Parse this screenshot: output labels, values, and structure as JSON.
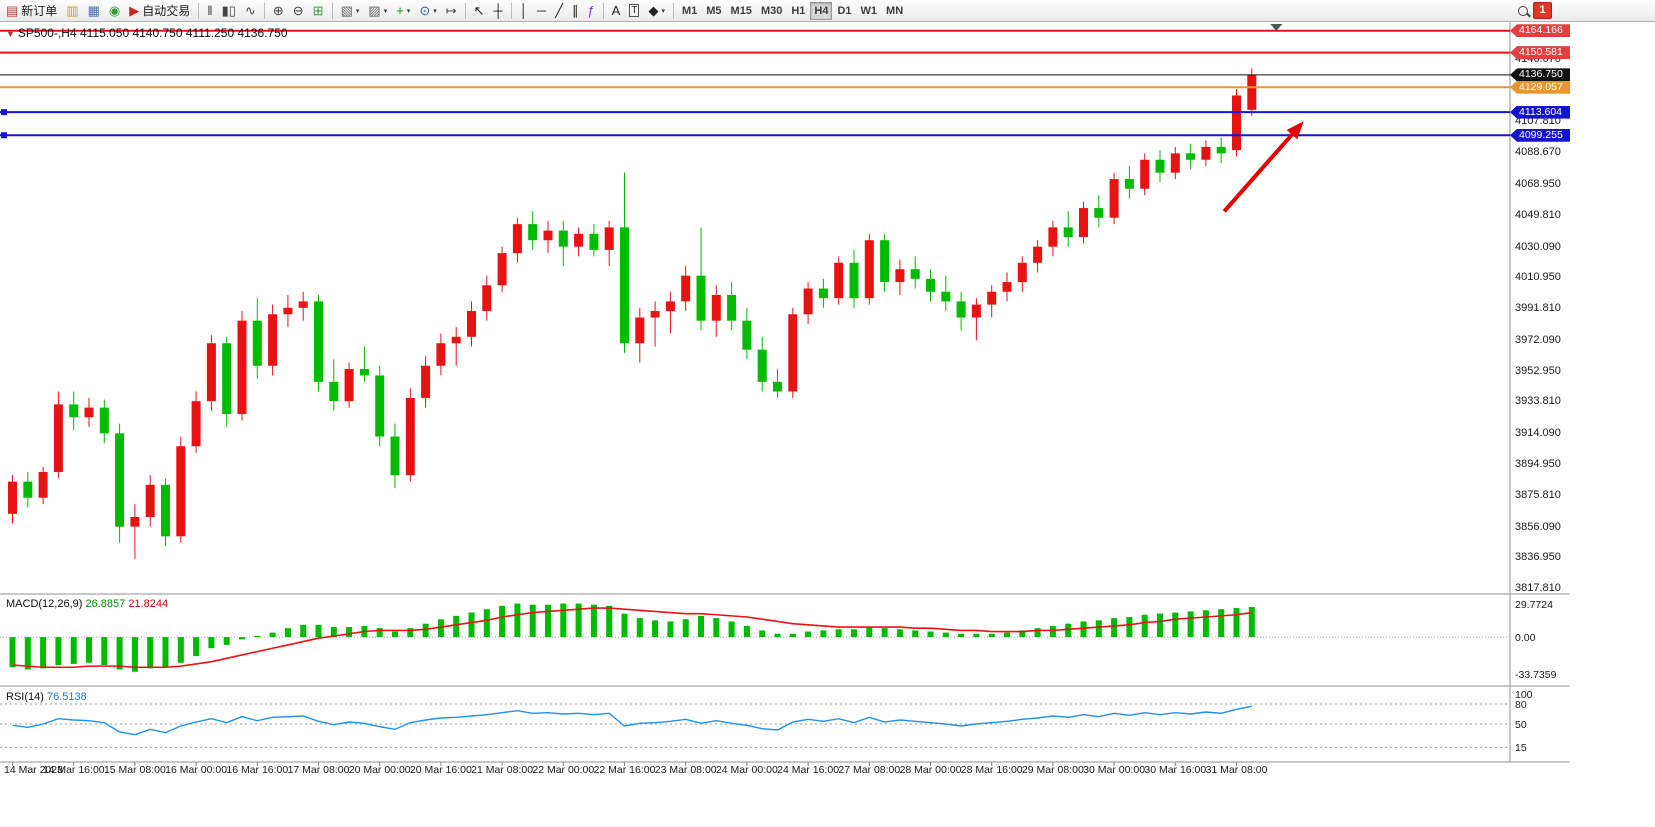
{
  "toolbar": {
    "items": [
      {
        "kind": "button",
        "name": "new-order-button",
        "glyph": "▤",
        "glyph_color": "#b04040",
        "label": "新订单"
      },
      {
        "kind": "button",
        "name": "market-watch-icon",
        "glyph": "▥",
        "glyph_color": "#c8a020"
      },
      {
        "kind": "button",
        "name": "data-window-icon",
        "glyph": "▦",
        "glyph_color": "#4a6fa5"
      },
      {
        "kind": "button",
        "name": "navigator-icon",
        "glyph": "◉",
        "glyph_color": "#3a9a3a"
      },
      {
        "kind": "button",
        "name": "autotrading-button",
        "glyph": "▶",
        "glyph_color": "#cc2222",
        "label": "自动交易"
      },
      {
        "kind": "sep"
      },
      {
        "kind": "button",
        "name": "bar-chart-icon",
        "glyph": "‖",
        "glyph_color": "#444444"
      },
      {
        "kind": "button",
        "name": "candlestick-chart-icon",
        "glyph": "▮▯",
        "glyph_color": "#444444"
      },
      {
        "kind": "button",
        "name": "line-chart-icon",
        "glyph": "∿",
        "glyph_color": "#444444"
      },
      {
        "kind": "sep"
      },
      {
        "kind": "button",
        "name": "zoom-in-icon",
        "glyph": "⊕",
        "glyph_color": "#444444"
      },
      {
        "kind": "button",
        "name": "zoom-out-icon",
        "glyph": "⊖",
        "glyph_color": "#444444"
      },
      {
        "kind": "button",
        "name": "tile-windows-icon",
        "glyph": "⊞",
        "glyph_color": "#3a9a3a"
      },
      {
        "kind": "sep"
      },
      {
        "kind": "button",
        "name": "templates-icon",
        "glyph": "▧",
        "glyph_color": "#666666",
        "dropdown": true
      },
      {
        "kind": "button",
        "name": "profiles-icon",
        "glyph": "▨",
        "glyph_color": "#666666",
        "dropdown": true
      },
      {
        "kind": "button",
        "name": "indicators-icon",
        "glyph": "+",
        "glyph_color": "#0a9a0a",
        "dropdown": true
      },
      {
        "kind": "button",
        "name": "periods-icon",
        "glyph": "⊙",
        "glyph_color": "#2a5fae",
        "dropdown": true
      },
      {
        "kind": "button",
        "name": "chart-shift-icon",
        "glyph": "↦",
        "glyph_color": "#444444"
      },
      {
        "kind": "sep"
      },
      {
        "kind": "button",
        "name": "cursor-icon",
        "glyph": "↖",
        "glyph_color": "#222222"
      },
      {
        "kind": "button",
        "name": "crosshair-icon",
        "glyph": "┼",
        "glyph_color": "#222222"
      },
      {
        "kind": "sep"
      },
      {
        "kind": "button",
        "name": "vertical-line-icon",
        "glyph": "│",
        "glyph_color": "#222222"
      },
      {
        "kind": "button",
        "name": "horizontal-line-icon",
        "glyph": "─",
        "glyph_color": "#222222"
      },
      {
        "kind": "button",
        "name": "trendline-icon",
        "glyph": "╱",
        "glyph_color": "#222222"
      },
      {
        "kind": "button",
        "name": "equidistant-channel-icon",
        "glyph": "∥",
        "glyph_color": "#222222"
      },
      {
        "kind": "button",
        "name": "fibonacci-icon",
        "glyph": "ƒ",
        "glyph_color": "#8a2be2"
      },
      {
        "kind": "sep"
      },
      {
        "kind": "button",
        "name": "text-icon",
        "glyph": "A",
        "glyph_color": "#222222"
      },
      {
        "kind": "button",
        "name": "text-label-icon",
        "glyph": "T",
        "glyph_color": "#222222",
        "boxed": true
      },
      {
        "kind": "button",
        "name": "arrows-icon",
        "glyph": "◆",
        "glyph_color": "#222222",
        "dropdown": true
      },
      {
        "kind": "sep"
      },
      {
        "kind": "timeframes"
      },
      {
        "kind": "spacer"
      },
      {
        "kind": "search"
      },
      {
        "kind": "badge"
      },
      {
        "kind": "rpad"
      }
    ],
    "timeframes": {
      "options": [
        "M1",
        "M5",
        "M15",
        "M30",
        "H1",
        "H4",
        "D1",
        "W1",
        "MN"
      ],
      "active": "H4"
    },
    "notification_count": "1"
  },
  "chart": {
    "symbol_period": "SP500-,H4",
    "ohlc": "4115.050 4140.750 4111.250 4136.750"
  },
  "chart_data": {
    "type": "candlestick",
    "symbol": "SP500-",
    "period": "H4",
    "up_color": "#e81212",
    "down_color": "#00bb00",
    "price_range": [
      3815.4,
      4169.0
    ],
    "candles": [
      [
        3864,
        3888,
        3858,
        3884
      ],
      [
        3884,
        3890,
        3868,
        3874
      ],
      [
        3874,
        3893,
        3870,
        3890
      ],
      [
        3890,
        3940,
        3886,
        3932
      ],
      [
        3932,
        3940,
        3916,
        3924
      ],
      [
        3924,
        3936,
        3918,
        3930
      ],
      [
        3930,
        3935,
        3908,
        3914
      ],
      [
        3914,
        3920,
        3846,
        3856
      ],
      [
        3856,
        3870,
        3836,
        3862
      ],
      [
        3862,
        3888,
        3856,
        3882
      ],
      [
        3882,
        3886,
        3844,
        3850
      ],
      [
        3850,
        3912,
        3846,
        3906
      ],
      [
        3906,
        3940,
        3902,
        3934
      ],
      [
        3934,
        3975,
        3928,
        3970
      ],
      [
        3970,
        3974,
        3918,
        3926
      ],
      [
        3926,
        3990,
        3922,
        3984
      ],
      [
        3984,
        3998,
        3948,
        3956
      ],
      [
        3956,
        3994,
        3950,
        3988
      ],
      [
        3988,
        4000,
        3980,
        3992
      ],
      [
        3992,
        4002,
        3984,
        3996
      ],
      [
        3996,
        4000,
        3940,
        3946
      ],
      [
        3946,
        3960,
        3928,
        3934
      ],
      [
        3934,
        3958,
        3930,
        3954
      ],
      [
        3954,
        3968,
        3946,
        3950
      ],
      [
        3950,
        3956,
        3906,
        3912
      ],
      [
        3912,
        3920,
        3880,
        3888
      ],
      [
        3888,
        3942,
        3884,
        3936
      ],
      [
        3936,
        3962,
        3930,
        3956
      ],
      [
        3956,
        3976,
        3950,
        3970
      ],
      [
        3970,
        3980,
        3956,
        3974
      ],
      [
        3974,
        3996,
        3968,
        3990
      ],
      [
        3990,
        4012,
        3984,
        4006
      ],
      [
        4006,
        4030,
        4002,
        4026
      ],
      [
        4026,
        4048,
        4020,
        4044
      ],
      [
        4044,
        4052,
        4028,
        4034
      ],
      [
        4034,
        4046,
        4026,
        4040
      ],
      [
        4040,
        4046,
        4018,
        4030
      ],
      [
        4030,
        4042,
        4024,
        4038
      ],
      [
        4038,
        4044,
        4024,
        4028
      ],
      [
        4028,
        4046,
        4018,
        4042
      ],
      [
        4042,
        4076,
        3964,
        3970
      ],
      [
        3970,
        3992,
        3958,
        3986
      ],
      [
        3986,
        3996,
        3968,
        3990
      ],
      [
        3990,
        4002,
        3976,
        3996
      ],
      [
        3996,
        4018,
        3990,
        4012
      ],
      [
        4012,
        4042,
        3978,
        3984
      ],
      [
        3984,
        4006,
        3974,
        4000
      ],
      [
        4000,
        4008,
        3978,
        3984
      ],
      [
        3984,
        3992,
        3960,
        3966
      ],
      [
        3966,
        3974,
        3940,
        3946
      ],
      [
        3946,
        3954,
        3936,
        3940
      ],
      [
        3940,
        3992,
        3936,
        3988
      ],
      [
        3988,
        4008,
        3982,
        4004
      ],
      [
        4004,
        4010,
        3992,
        3998
      ],
      [
        3998,
        4024,
        3994,
        4020
      ],
      [
        4020,
        4028,
        3992,
        3998
      ],
      [
        3998,
        4038,
        3994,
        4034
      ],
      [
        4034,
        4038,
        4002,
        4008
      ],
      [
        4008,
        4022,
        4000,
        4016
      ],
      [
        4016,
        4024,
        4004,
        4010
      ],
      [
        4010,
        4016,
        3996,
        4002
      ],
      [
        4002,
        4012,
        3990,
        3996
      ],
      [
        3996,
        4002,
        3978,
        3986
      ],
      [
        3986,
        3998,
        3972,
        3994
      ],
      [
        3994,
        4006,
        3986,
        4002
      ],
      [
        4002,
        4014,
        3996,
        4008
      ],
      [
        4008,
        4024,
        4002,
        4020
      ],
      [
        4020,
        4034,
        4014,
        4030
      ],
      [
        4030,
        4046,
        4024,
        4042
      ],
      [
        4042,
        4052,
        4030,
        4036
      ],
      [
        4036,
        4058,
        4032,
        4054
      ],
      [
        4054,
        4062,
        4042,
        4048
      ],
      [
        4048,
        4076,
        4044,
        4072
      ],
      [
        4072,
        4080,
        4060,
        4066
      ],
      [
        4066,
        4088,
        4062,
        4084
      ],
      [
        4084,
        4090,
        4070,
        4076
      ],
      [
        4076,
        4092,
        4072,
        4088
      ],
      [
        4088,
        4094,
        4078,
        4084
      ],
      [
        4084,
        4096,
        4080,
        4092
      ],
      [
        4092,
        4098,
        4082,
        4088
      ],
      [
        4090,
        4128,
        4086,
        4124
      ],
      [
        4115.05,
        4140.75,
        4111.25,
        4136.75
      ]
    ],
    "label_step": 4,
    "time_labels": [
      "14 Mar 2023",
      "14 Mar 16:00",
      "15 Mar 08:00",
      "16 Mar 00:00",
      "16 Mar 16:00",
      "17 Mar 08:00",
      "20 Mar 00:00",
      "20 Mar 16:00",
      "21 Mar 08:00",
      "22 Mar 00:00",
      "22 Mar 16:00",
      "23 Mar 08:00",
      "24 Mar 00:00",
      "24 Mar 16:00",
      "27 Mar 08:00",
      "28 Mar 00:00",
      "28 Mar 16:00",
      "29 Mar 08:00",
      "30 Mar 00:00",
      "30 Mar 16:00",
      "31 Mar 08:00"
    ],
    "price_axis_labels": [
      "4146.670",
      "4107.810",
      "4088.670",
      "4068.950",
      "4049.810",
      "4030.090",
      "4010.950",
      "3991.810",
      "3972.090",
      "3952.950",
      "3933.810",
      "3914.090",
      "3894.950",
      "3875.810",
      "3856.090",
      "3836.950",
      "3817.810"
    ],
    "hlines": [
      {
        "price": 4164.166,
        "label": "4164.166",
        "line_color": "#ee1111",
        "badge_bg": "#e04040",
        "width": 2,
        "handles": false
      },
      {
        "price": 4150.581,
        "label": "4150.581",
        "line_color": "#ee1111",
        "badge_bg": "#e04040",
        "width": 2,
        "handles": false
      },
      {
        "price": 4136.75,
        "label": "4136.750",
        "line_color": "#111111",
        "badge_bg": "#111111",
        "width": 1,
        "handles": false
      },
      {
        "price": 4129.057,
        "label": "4129.057",
        "line_color": "#e8952e",
        "badge_bg": "#e8952e",
        "width": 2,
        "handles": false
      },
      {
        "price": 4113.604,
        "label": "4113.604",
        "line_color": "#1414dd",
        "badge_bg": "#1414cc",
        "width": 2,
        "handles": true
      },
      {
        "price": 4099.255,
        "label": "4099.255",
        "line_color": "#1414dd",
        "badge_bg": "#1414cc",
        "width": 2,
        "handles": true
      }
    ],
    "arrow": {
      "from_index": 79.2,
      "from_price": 4052,
      "to_index": 84.4,
      "to_price": 4108,
      "color": "#e60000",
      "width": 4
    },
    "shift_marker_index": 82.6,
    "macd": {
      "label": "MACD(12,26,9)",
      "value_main": "26.8857",
      "value_signal": "21.8244",
      "range": [
        -42.0,
        36.8
      ],
      "histogram_color": "#00bb00",
      "signal_color": "#ee1111",
      "axis_labels": [
        {
          "text": "29.7724",
          "value": 29.7724
        },
        {
          "text": "0.00",
          "value": 0
        },
        {
          "text": "-33.7359",
          "value": -33.7359
        }
      ],
      "main": [
        -27,
        -29,
        -28,
        -25,
        -24,
        -23,
        -25,
        -29,
        -31,
        -28,
        -27,
        -23,
        -17,
        -10,
        -7,
        -2,
        1,
        4,
        8,
        11,
        11,
        9,
        9,
        10,
        8,
        5,
        8,
        12,
        16,
        19,
        22,
        25,
        28,
        30,
        29,
        29,
        30,
        30,
        29,
        28,
        21,
        17,
        15,
        14,
        16,
        19,
        17,
        14,
        10,
        6,
        3,
        3,
        5,
        6,
        7,
        7,
        9,
        8,
        7,
        6,
        5,
        4,
        3,
        3,
        3,
        4,
        6,
        8,
        10,
        12,
        14,
        15,
        17,
        18,
        20,
        21,
        22,
        23,
        24,
        25,
        26,
        26.8857
      ],
      "signal": [
        -25,
        -26,
        -27,
        -27,
        -27,
        -26,
        -26,
        -26,
        -27,
        -27,
        -27,
        -26,
        -24,
        -22,
        -19,
        -16,
        -13,
        -10,
        -7,
        -4,
        -1,
        1,
        3,
        5,
        6,
        6,
        6,
        7,
        9,
        11,
        13,
        15,
        18,
        20,
        22,
        23,
        24,
        25,
        26,
        26,
        25,
        24,
        23,
        22,
        21,
        21,
        20,
        19,
        18,
        16,
        14,
        12,
        11,
        10,
        9,
        9,
        9,
        9,
        9,
        8,
        8,
        7,
        6,
        6,
        5,
        5,
        5,
        6,
        6,
        7,
        8,
        9,
        10,
        11,
        13,
        14,
        16,
        17,
        18,
        19,
        20,
        21.8244
      ]
    },
    "rsi": {
      "label": "RSI(14)",
      "value": "76.5138",
      "range": [
        -4,
        104
      ],
      "line_color": "#2090ee",
      "levels": [
        80,
        50,
        15
      ],
      "axis_labels": [
        {
          "text": "100",
          "value": 100
        },
        {
          "text": "80",
          "value": 80
        },
        {
          "text": "50",
          "value": 50
        },
        {
          "text": "15",
          "value": 15
        }
      ],
      "values": [
        48,
        45,
        50,
        58,
        56,
        55,
        52,
        38,
        34,
        42,
        37,
        47,
        53,
        58,
        52,
        61,
        55,
        60,
        61,
        62,
        54,
        49,
        53,
        51,
        46,
        42,
        52,
        56,
        59,
        60,
        62,
        64,
        67,
        70,
        66,
        67,
        65,
        66,
        64,
        66,
        47,
        51,
        52,
        54,
        57,
        51,
        55,
        51,
        48,
        43,
        41,
        53,
        57,
        54,
        58,
        52,
        60,
        53,
        56,
        54,
        52,
        50,
        47,
        50,
        52,
        54,
        57,
        59,
        62,
        60,
        64,
        61,
        66,
        63,
        67,
        64,
        67,
        65,
        68,
        66,
        72,
        76.5138
      ]
    }
  }
}
